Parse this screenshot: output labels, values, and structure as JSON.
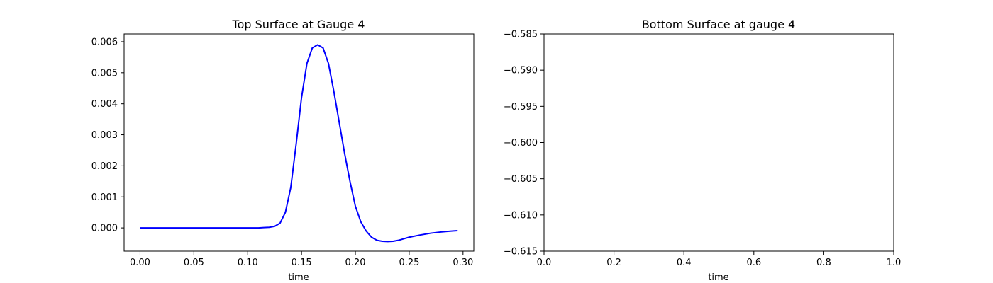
{
  "chart_data": [
    {
      "type": "line",
      "title": "Top Surface at Gauge 4",
      "xlabel": "time",
      "ylabel": "",
      "xlim": [
        -0.0148,
        0.31
      ],
      "ylim": [
        -0.00075,
        0.00625
      ],
      "xticks": [
        0.0,
        0.05,
        0.1,
        0.15,
        0.2,
        0.25,
        0.3
      ],
      "xtick_labels": [
        "0.00",
        "0.05",
        "0.10",
        "0.15",
        "0.20",
        "0.25",
        "0.30"
      ],
      "yticks": [
        0.0,
        0.001,
        0.002,
        0.003,
        0.004,
        0.005,
        0.006
      ],
      "ytick_labels": [
        "0.000",
        "0.001",
        "0.002",
        "0.003",
        "0.004",
        "0.005",
        "0.006"
      ],
      "grid": false,
      "line_color": "#0000ff",
      "x": [
        0.0,
        0.02,
        0.04,
        0.06,
        0.08,
        0.1,
        0.11,
        0.115,
        0.12,
        0.125,
        0.13,
        0.135,
        0.14,
        0.145,
        0.15,
        0.155,
        0.16,
        0.165,
        0.17,
        0.175,
        0.18,
        0.185,
        0.19,
        0.195,
        0.2,
        0.205,
        0.21,
        0.215,
        0.22,
        0.225,
        0.23,
        0.235,
        0.24,
        0.245,
        0.25,
        0.26,
        0.27,
        0.28,
        0.29,
        0.295
      ],
      "y": [
        0.0,
        0.0,
        0.0,
        0.0,
        0.0,
        0.0,
        0.0,
        1e-05,
        2e-05,
        5e-05,
        0.00015,
        0.0005,
        0.0013,
        0.0027,
        0.0042,
        0.0053,
        0.0058,
        0.0059,
        0.0058,
        0.0053,
        0.0044,
        0.0034,
        0.0024,
        0.0015,
        0.0007,
        0.0002,
        -0.0001,
        -0.0003,
        -0.0004,
        -0.00043,
        -0.00044,
        -0.00043,
        -0.0004,
        -0.00035,
        -0.0003,
        -0.00023,
        -0.00017,
        -0.00013,
        -0.0001,
        -9e-05
      ]
    },
    {
      "type": "line",
      "title": "Bottom Surface at gauge 4",
      "xlabel": "time",
      "ylabel": "",
      "xlim": [
        0.0,
        1.0
      ],
      "ylim": [
        -0.615,
        -0.585
      ],
      "xticks": [
        0.0,
        0.2,
        0.4,
        0.6,
        0.8,
        1.0
      ],
      "xtick_labels": [
        "0.0",
        "0.2",
        "0.4",
        "0.6",
        "0.8",
        "1.0"
      ],
      "yticks": [
        -0.615,
        -0.61,
        -0.605,
        -0.6,
        -0.595,
        -0.59,
        -0.585
      ],
      "ytick_labels": [
        "−0.615",
        "−0.610",
        "−0.605",
        "−0.600",
        "−0.595",
        "−0.590",
        "−0.585"
      ],
      "grid": false,
      "line_color": "#0000ff",
      "x": [],
      "y": []
    }
  ]
}
